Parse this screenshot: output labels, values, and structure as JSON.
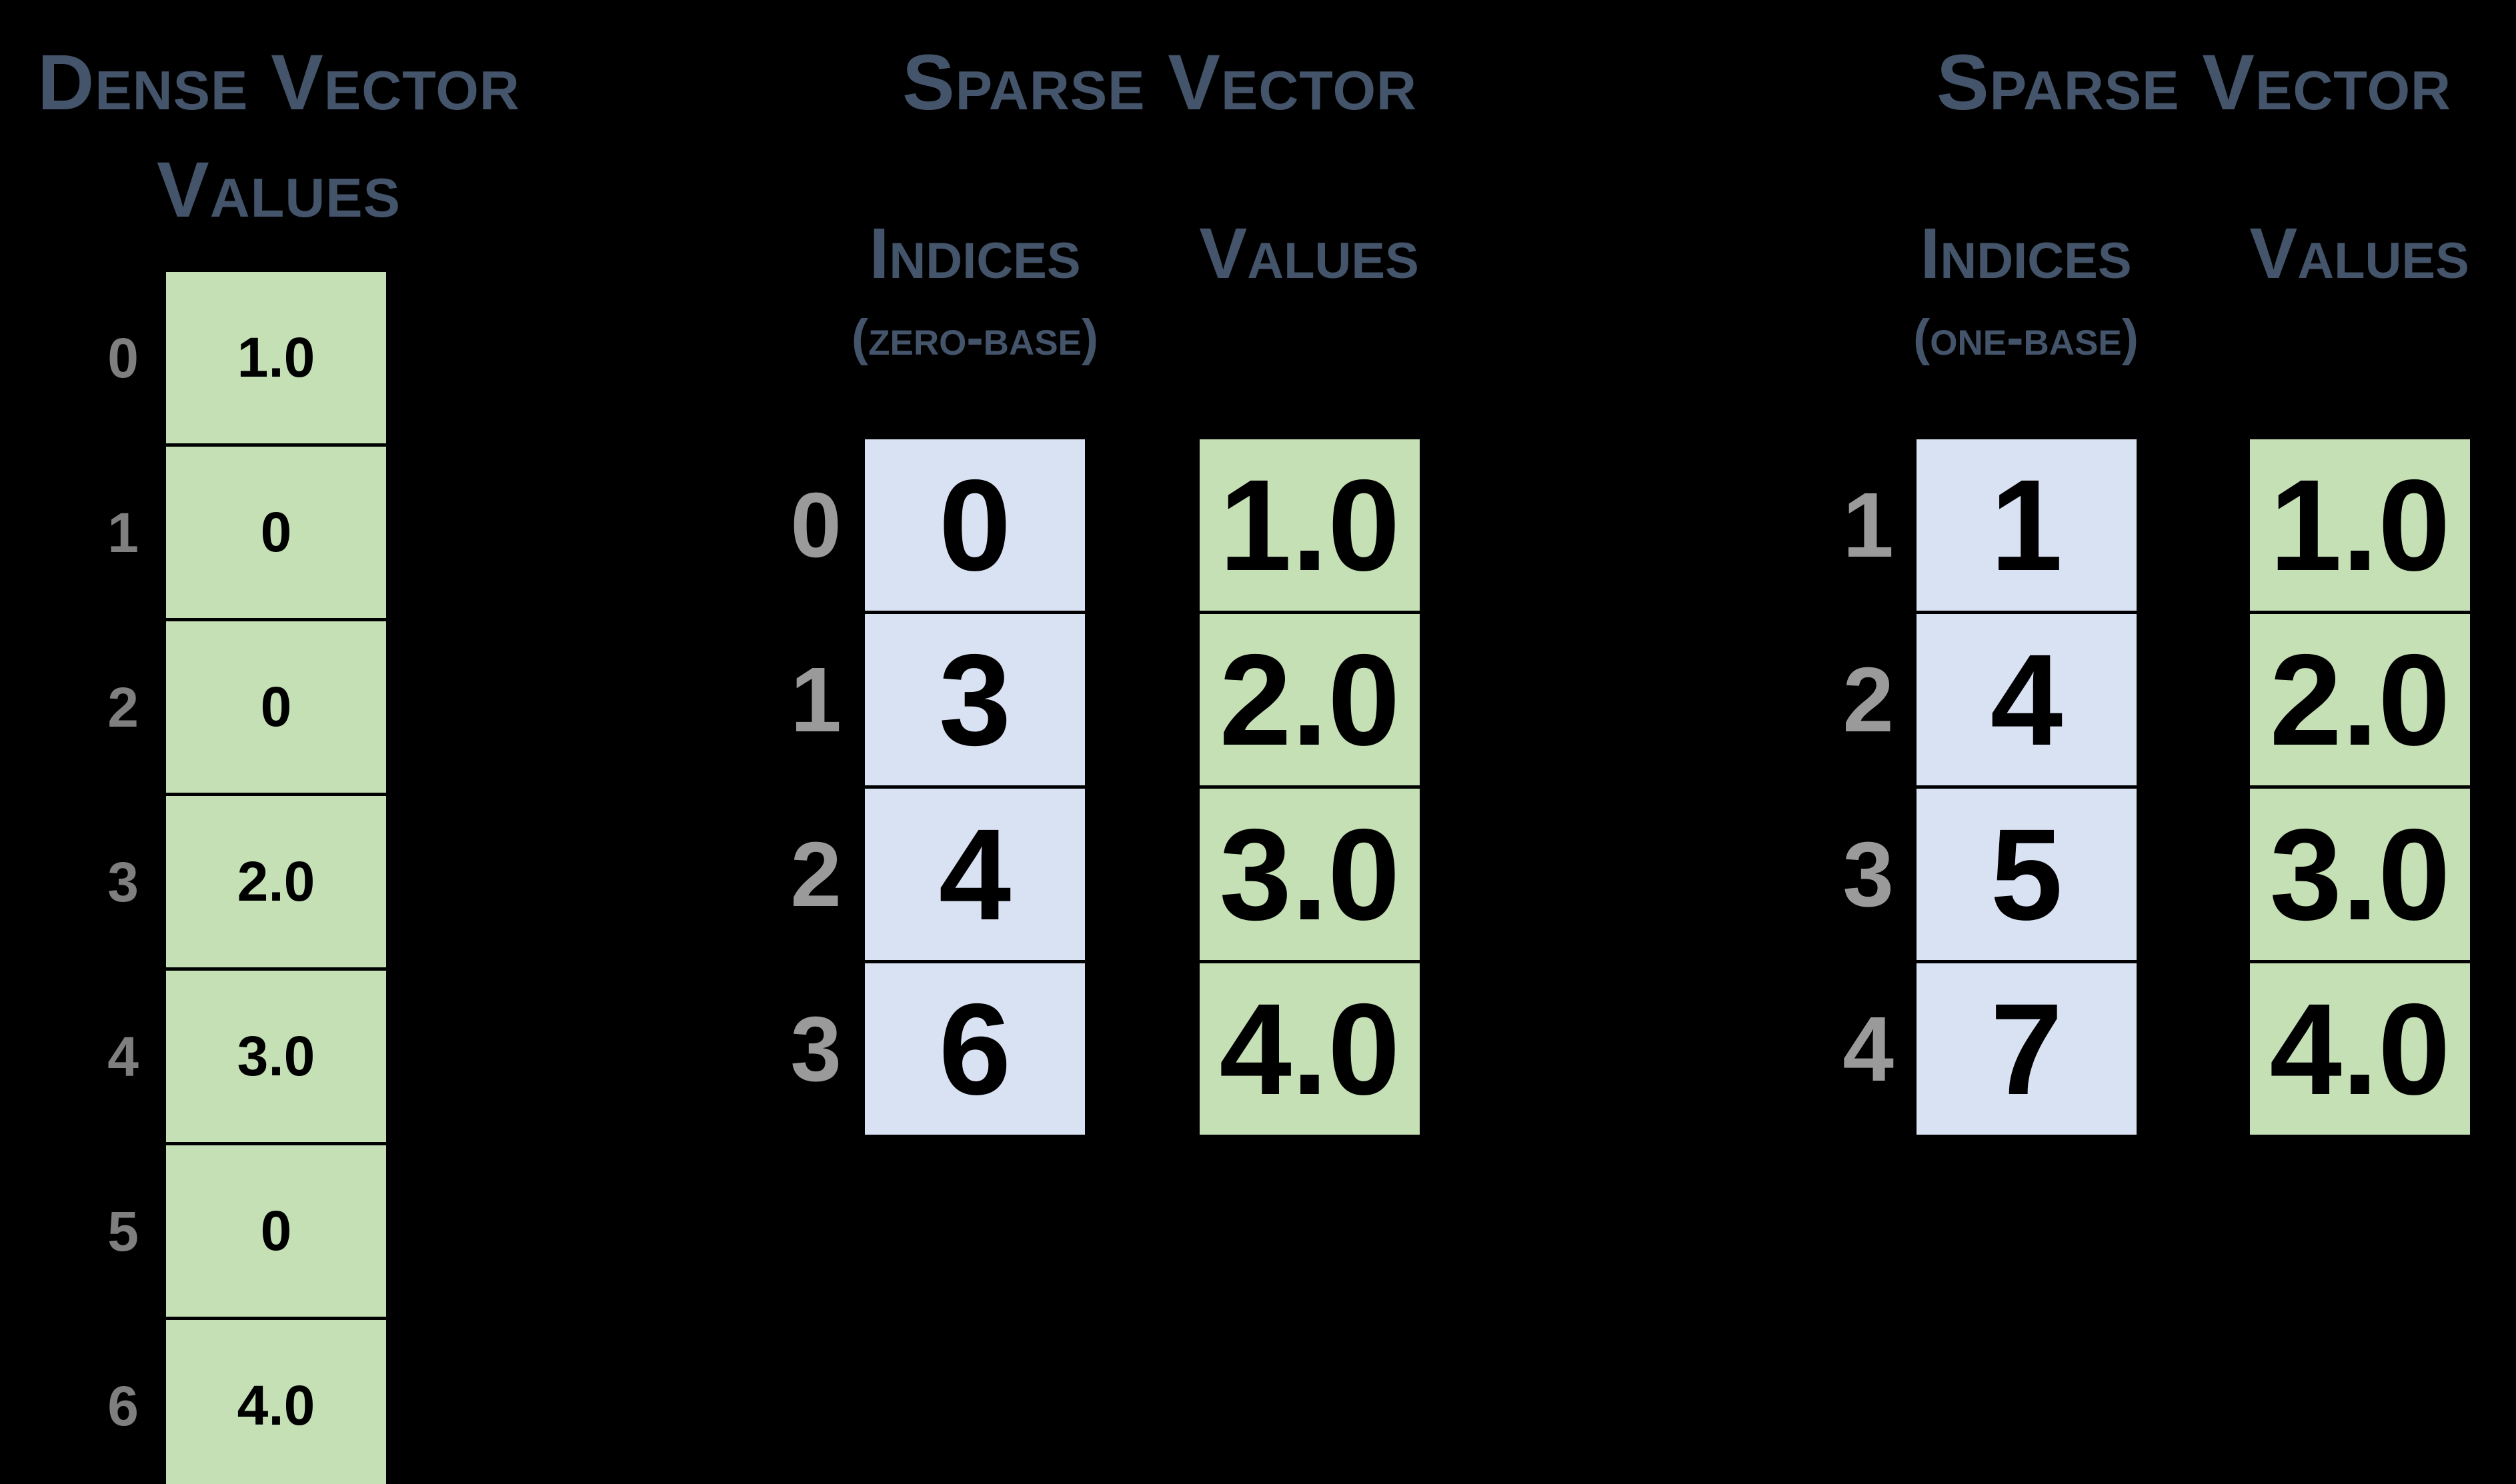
{
  "palette": {
    "background": "#000000",
    "heading_text": "#44546A",
    "values_cell_fill": "#C5E0B4",
    "indices_cell_fill": "#D9E2F3",
    "cell_text": "#000000",
    "cell_border": "#000000",
    "dense_row_label_text": "#7F7F7F",
    "sparse_row_label_text": "#9A9A9A"
  },
  "dense_section": {
    "title_line1": "Dense Vector",
    "title_line2": "Values",
    "rows": [
      {
        "label": "0",
        "value": "1.0"
      },
      {
        "label": "1",
        "value": "0"
      },
      {
        "label": "2",
        "value": "0"
      },
      {
        "label": "3",
        "value": "2.0"
      },
      {
        "label": "4",
        "value": "3.0"
      },
      {
        "label": "5",
        "value": "0"
      },
      {
        "label": "6",
        "value": "4.0"
      }
    ]
  },
  "sparse_zero_section": {
    "title": "Sparse Vector",
    "indices_header": "Indices",
    "base_note": "(zero-base)",
    "values_header": "Values",
    "rows": [
      {
        "label": "0",
        "index": "0",
        "value": "1.0"
      },
      {
        "label": "1",
        "index": "3",
        "value": "2.0"
      },
      {
        "label": "2",
        "index": "4",
        "value": "3.0"
      },
      {
        "label": "3",
        "index": "6",
        "value": "4.0"
      }
    ]
  },
  "sparse_one_section": {
    "title": "Sparse Vector",
    "indices_header": "Indices",
    "base_note": "(one-base)",
    "values_header": "Values",
    "rows": [
      {
        "label": "1",
        "index": "1",
        "value": "1.0"
      },
      {
        "label": "2",
        "index": "4",
        "value": "2.0"
      },
      {
        "label": "3",
        "index": "5",
        "value": "3.0"
      },
      {
        "label": "4",
        "index": "7",
        "value": "4.0"
      }
    ]
  }
}
